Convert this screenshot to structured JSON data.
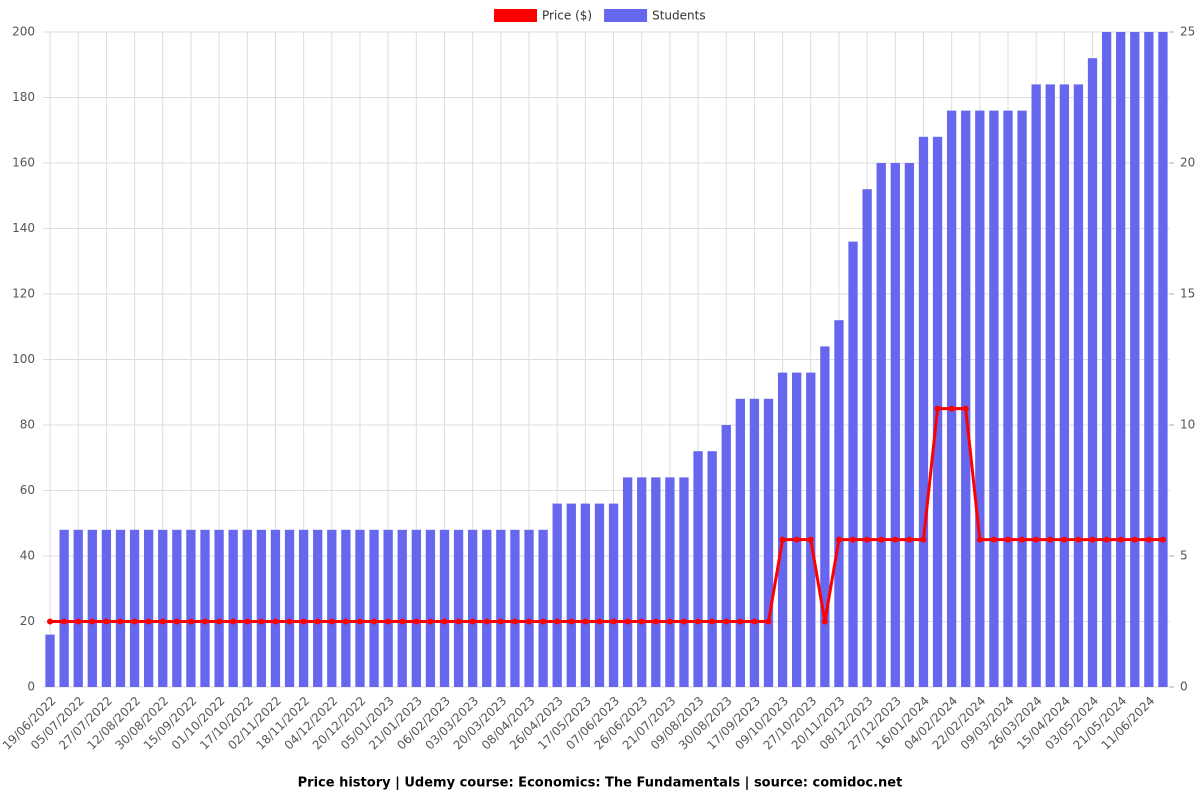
{
  "chart_data": {
    "type": "bar",
    "title": "Price history | Udemy course: Economics: The Fundamentals | source: comidoc.net",
    "categories": [
      "19/06/2022",
      null,
      "05/07/2022",
      null,
      "27/07/2022",
      null,
      "12/08/2022",
      null,
      "30/08/2022",
      null,
      "15/09/2022",
      null,
      "01/10/2022",
      null,
      "17/10/2022",
      null,
      "02/11/2022",
      null,
      "18/11/2022",
      null,
      "04/12/2022",
      null,
      "20/12/2022",
      null,
      "05/01/2023",
      null,
      "21/01/2023",
      null,
      "06/02/2023",
      null,
      "03/03/2023",
      null,
      "20/03/2023",
      null,
      "08/04/2023",
      null,
      "26/04/2023",
      null,
      "17/05/2023",
      null,
      "07/06/2023",
      null,
      "26/06/2023",
      null,
      "21/07/2023",
      null,
      "09/08/2023",
      null,
      "30/08/2023",
      null,
      "17/09/2023",
      null,
      "09/10/2023",
      null,
      "27/10/2023",
      null,
      "20/11/2023",
      null,
      "08/12/2023",
      null,
      "27/12/2023",
      null,
      "16/01/2024",
      null,
      "04/02/2024",
      null,
      "22/02/2024",
      null,
      "09/03/2024",
      null,
      "26/03/2024",
      null,
      "15/04/2024",
      null,
      "03/05/2024",
      null,
      "21/05/2024",
      null,
      "11/06/2024",
      null
    ],
    "series": [
      {
        "name": "Price ($)",
        "color": "#ff0000",
        "type": "line",
        "axis": "y",
        "values": [
          19.99,
          19.99,
          19.99,
          19.99,
          19.99,
          19.99,
          19.99,
          19.99,
          19.99,
          19.99,
          19.99,
          19.99,
          19.99,
          19.99,
          19.99,
          19.99,
          19.99,
          19.99,
          19.99,
          19.99,
          19.99,
          19.99,
          19.99,
          19.99,
          19.99,
          19.99,
          19.99,
          19.99,
          19.99,
          19.99,
          19.99,
          19.99,
          19.99,
          19.99,
          19.99,
          19.99,
          19.99,
          19.99,
          19.99,
          19.99,
          19.99,
          19.99,
          19.99,
          19.99,
          19.99,
          19.99,
          19.99,
          19.99,
          19.99,
          19.99,
          19.99,
          19.99,
          44.99,
          44.99,
          44.99,
          19.99,
          44.99,
          44.99,
          44.99,
          44.99,
          44.99,
          44.99,
          44.99,
          84.99,
          84.99,
          84.99,
          44.99,
          44.99,
          44.99,
          44.99,
          44.99,
          44.99,
          44.99,
          44.99,
          44.99,
          44.99,
          44.99,
          44.99,
          44.99,
          44.99
        ]
      },
      {
        "name": "Students",
        "color": "#6666ee",
        "type": "bar",
        "axis": "y2",
        "values": [
          2,
          6,
          6,
          6,
          6,
          6,
          6,
          6,
          6,
          6,
          6,
          6,
          6,
          6,
          6,
          6,
          6,
          6,
          6,
          6,
          6,
          6,
          6,
          6,
          6,
          6,
          6,
          6,
          6,
          6,
          6,
          6,
          6,
          6,
          6,
          6,
          7,
          7,
          7,
          7,
          7,
          8,
          8,
          8,
          8,
          8,
          9,
          9,
          10,
          11,
          11,
          11,
          12,
          12,
          12,
          13,
          14,
          17,
          19,
          20,
          20,
          20,
          21,
          21,
          22,
          22,
          22,
          22,
          22,
          22,
          23,
          23,
          23,
          23,
          24,
          25,
          25,
          25,
          25,
          25
        ]
      }
    ],
    "ylim": [
      0,
      200
    ],
    "yticks": [
      0,
      20,
      40,
      60,
      80,
      100,
      120,
      140,
      160,
      180,
      200
    ],
    "y2lim": [
      0,
      25
    ],
    "y2ticks": [
      0,
      5,
      10,
      15,
      20,
      25
    ],
    "grid": true,
    "legend": "top"
  }
}
